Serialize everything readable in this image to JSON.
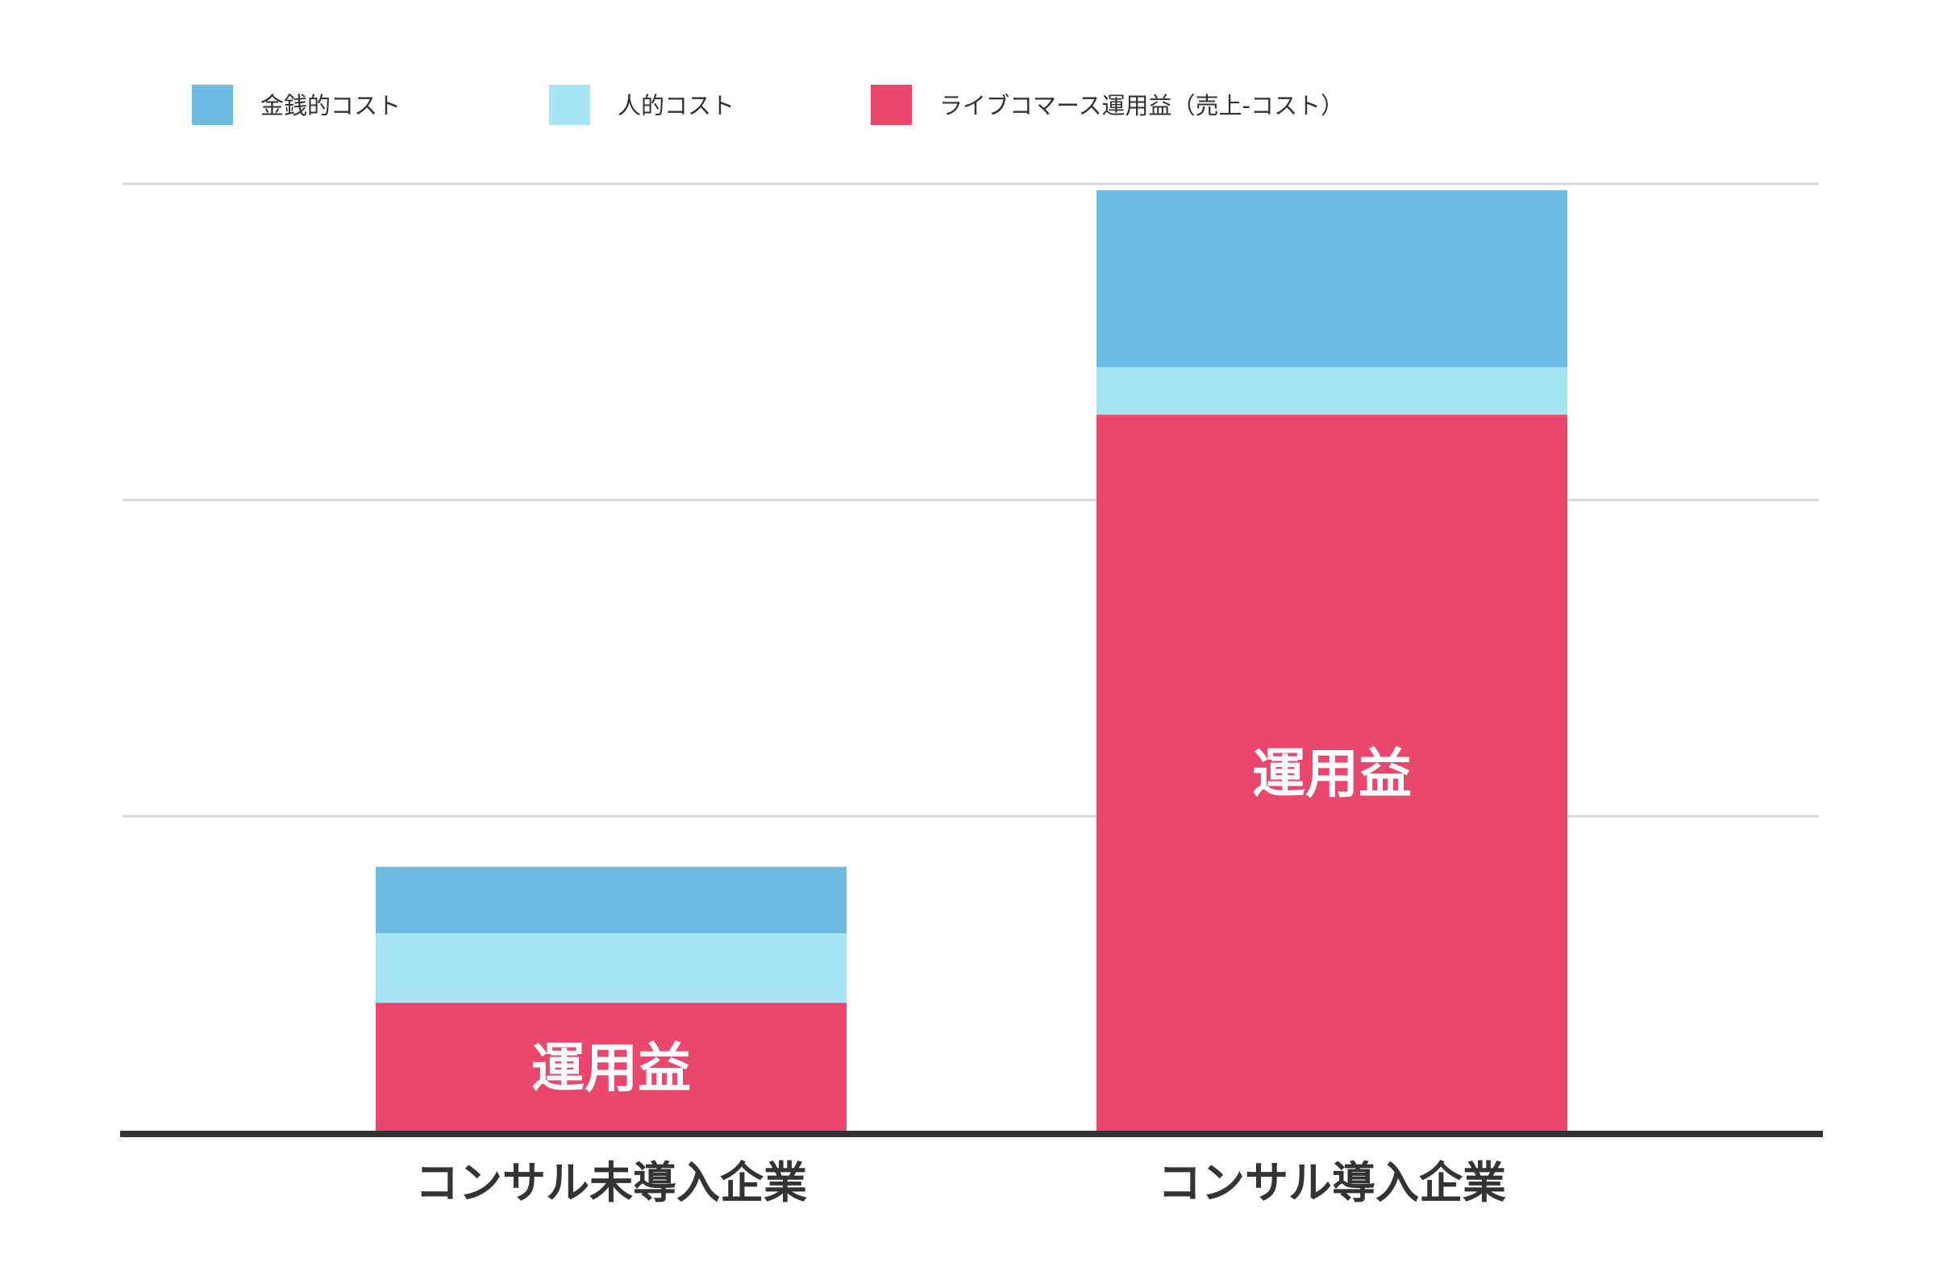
{
  "chart_data": {
    "type": "bar",
    "stacked": true,
    "categories": [
      "コンサル未導入企業",
      "コンサル導入企業"
    ],
    "series": [
      {
        "name": "ライブコマース運用益（売上-コスト）",
        "values": [
          0.41,
          2.27
        ],
        "color": "#e9476b"
      },
      {
        "name": "人的コスト",
        "values": [
          0.22,
          0.15
        ],
        "color": "#a6e5f3"
      },
      {
        "name": "金銭的コスト",
        "values": [
          0.21,
          0.56
        ],
        "color": "#6fbce3"
      }
    ],
    "legend_order": [
      "金銭的コスト",
      "人的コスト",
      "ライブコマース運用益（売上-コスト）"
    ],
    "bar_labels": [
      "運用益",
      "運用益"
    ],
    "ylim": [
      0,
      3
    ],
    "grid": true,
    "legend_position": "top-left",
    "title": "",
    "xlabel": "",
    "ylabel": ""
  }
}
